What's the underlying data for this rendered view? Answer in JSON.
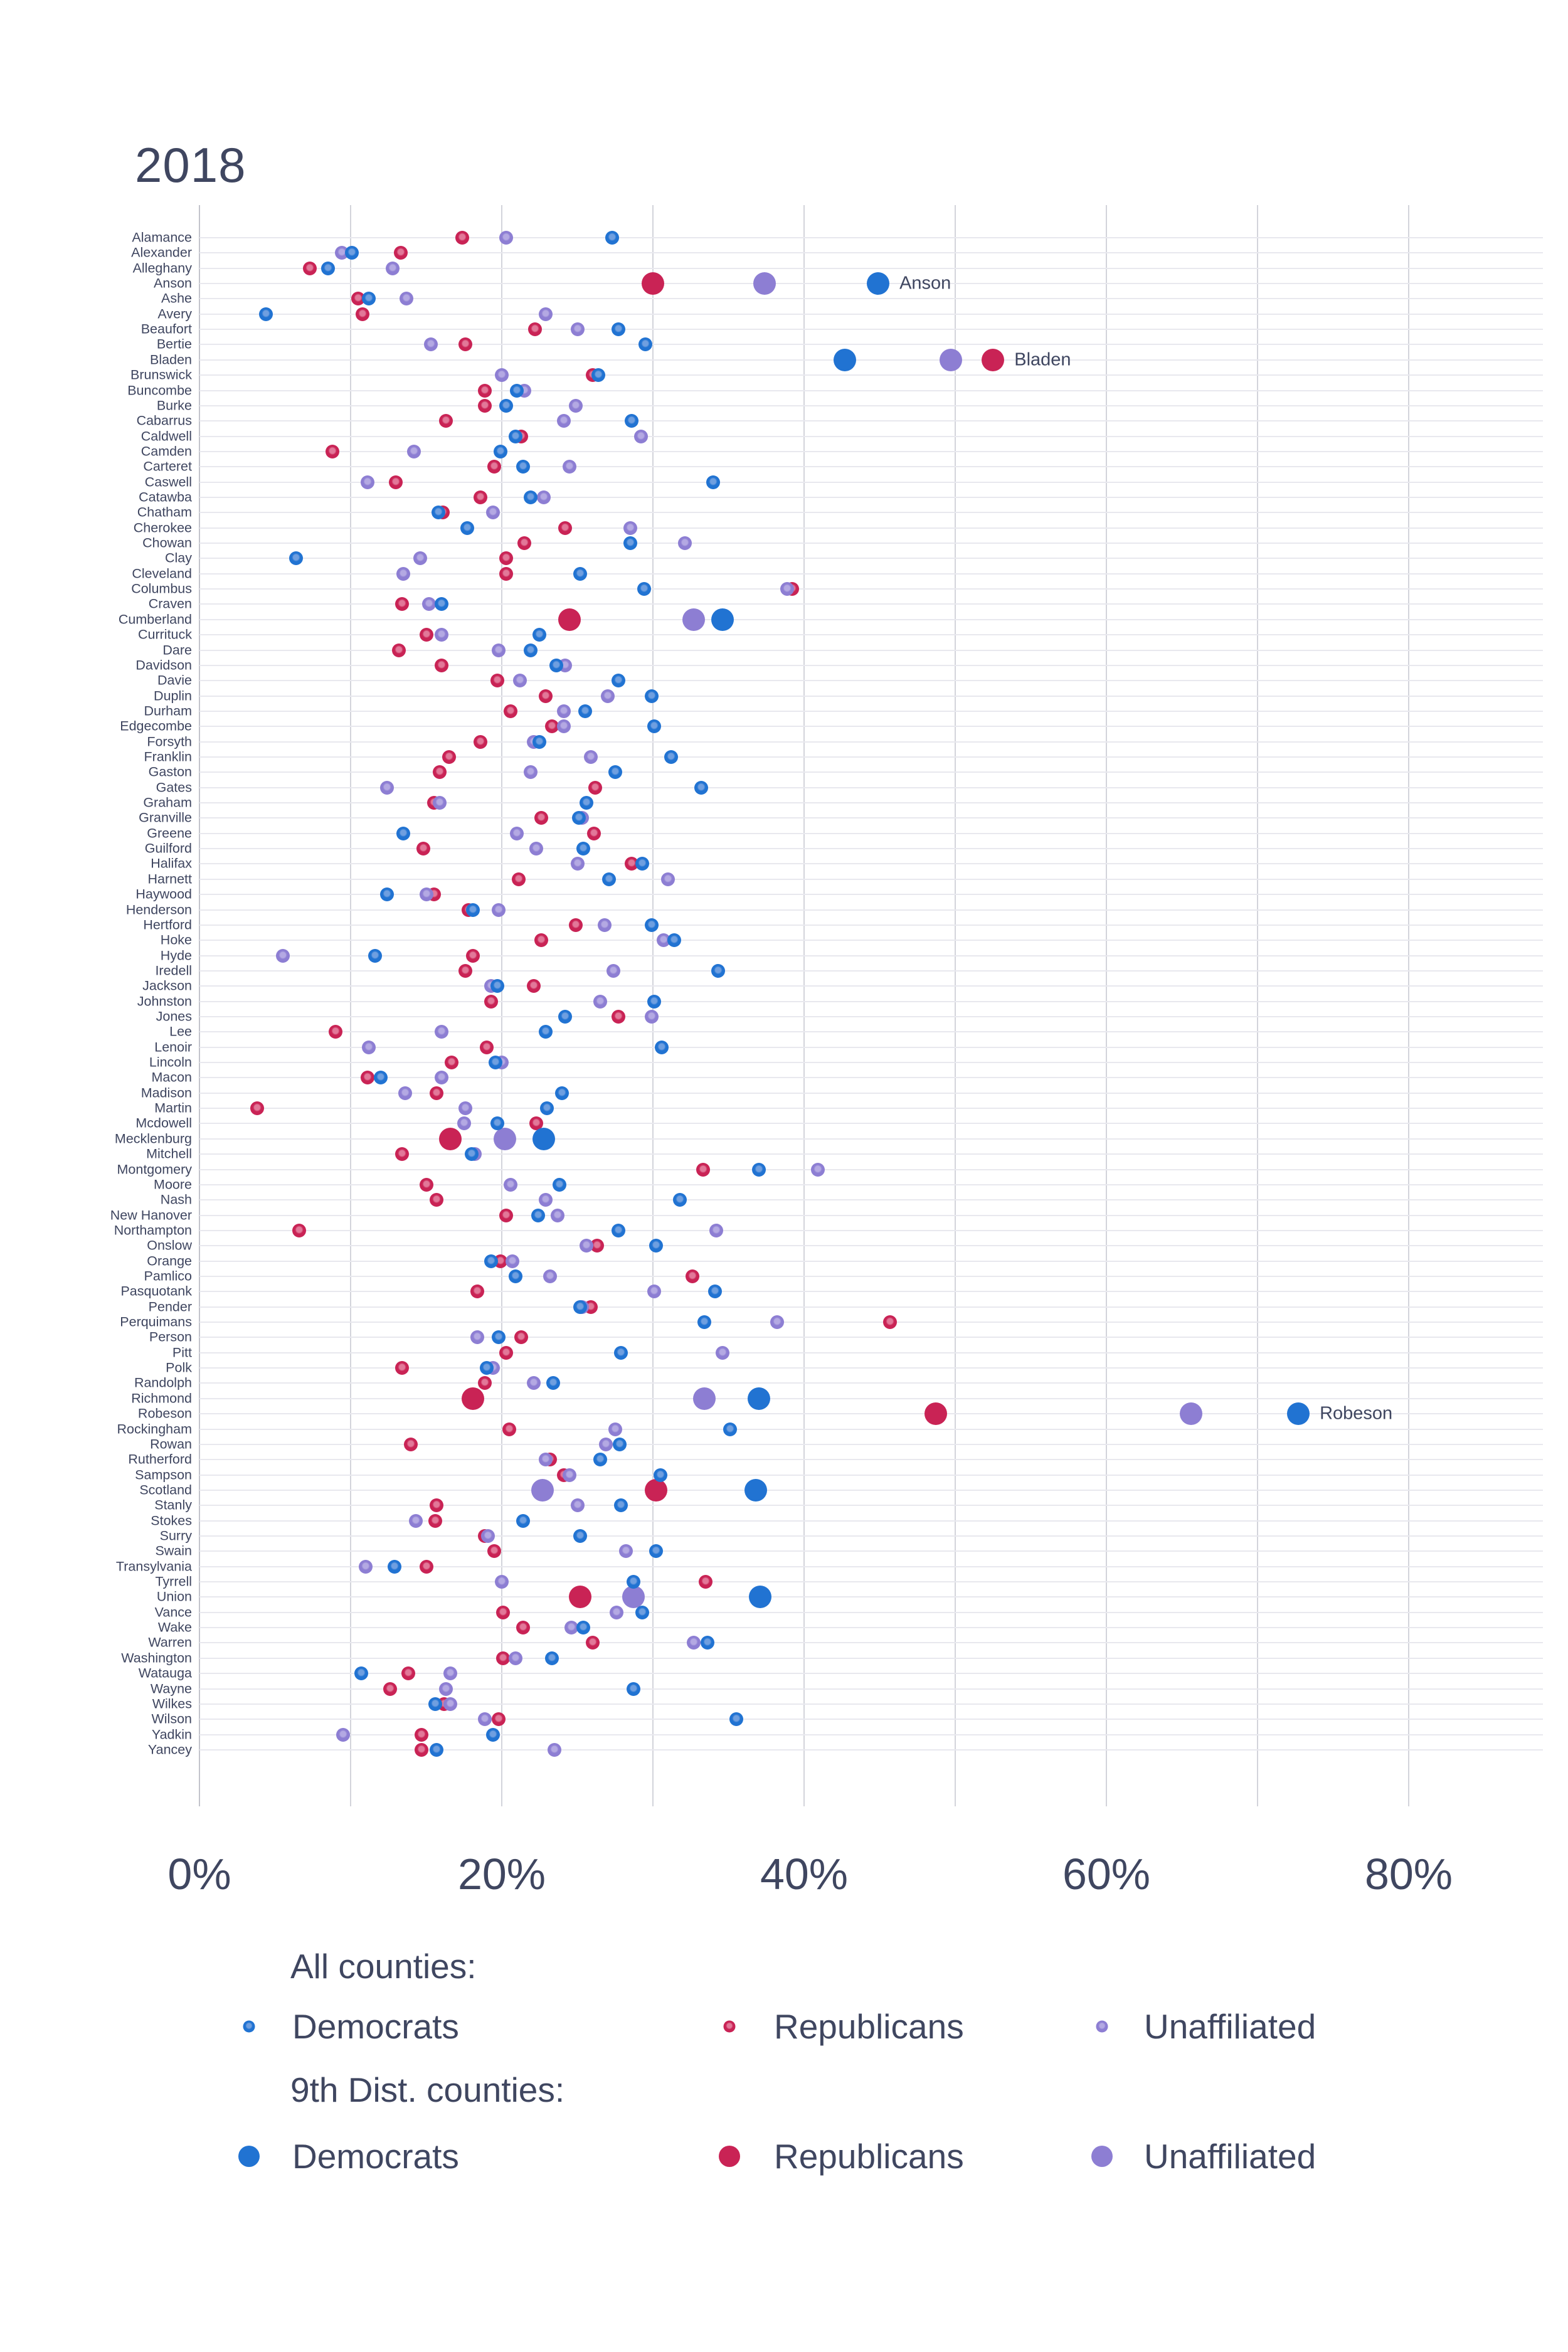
{
  "chart_data": {
    "type": "scatter",
    "title": "2018",
    "x_axis": {
      "min": 0,
      "max": 80,
      "unit": "percent",
      "ticks": [
        0,
        20,
        40,
        60,
        80
      ],
      "tick_labels": [
        "0%",
        "20%",
        "40%",
        "60%",
        "80%"
      ],
      "gridline_ticks": [
        0,
        10,
        20,
        30,
        40,
        50,
        60,
        70,
        80
      ]
    },
    "series": [
      {
        "key": "r",
        "label": "Republicans",
        "color": "#c92355",
        "light": "#e27899"
      },
      {
        "key": "u",
        "label": "Unaffiliated",
        "color": "#8d7ed3",
        "light": "#b4a9e3"
      },
      {
        "key": "d",
        "label": "Democrats",
        "color": "#2173d2",
        "light": "#6f9fe0"
      }
    ],
    "counties": [
      {
        "n": "Alamance",
        "d": 27.3,
        "r": 17.4,
        "u": 20.3
      },
      {
        "n": "Alexander",
        "d": 10.1,
        "r": 13.3,
        "u": 9.4
      },
      {
        "n": "Alleghany",
        "d": 8.5,
        "r": 7.3,
        "u": 12.8
      },
      {
        "n": "Anson",
        "d": 44.9,
        "r": 30.0,
        "u": 37.4,
        "d9": true
      },
      {
        "n": "Ashe",
        "d": 11.2,
        "r": 10.5,
        "u": 13.7
      },
      {
        "n": "Avery",
        "d": 4.4,
        "r": 10.8,
        "u": 22.9
      },
      {
        "n": "Beaufort",
        "d": 27.7,
        "r": 22.2,
        "u": 25.0
      },
      {
        "n": "Bertie",
        "d": 29.5,
        "r": 17.6,
        "u": 15.3
      },
      {
        "n": "Bladen",
        "d": 42.7,
        "r": 52.5,
        "u": 49.7,
        "d9": true
      },
      {
        "n": "Brunswick",
        "d": 26.4,
        "r": 26.0,
        "u": 20.0
      },
      {
        "n": "Buncombe",
        "d": 21.0,
        "r": 18.9,
        "u": 21.5
      },
      {
        "n": "Burke",
        "d": 20.3,
        "r": 18.9,
        "u": 24.9
      },
      {
        "n": "Cabarrus",
        "d": 28.6,
        "r": 16.3,
        "u": 24.1
      },
      {
        "n": "Caldwell",
        "d": 20.9,
        "r": 21.3,
        "u": 29.2
      },
      {
        "n": "Camden",
        "d": 19.9,
        "r": 8.8,
        "u": 14.2
      },
      {
        "n": "Carteret",
        "d": 21.4,
        "r": 19.5,
        "u": 24.5
      },
      {
        "n": "Caswell",
        "d": 34.0,
        "r": 13.0,
        "u": 11.1
      },
      {
        "n": "Catawba",
        "d": 21.9,
        "r": 18.6,
        "u": 22.8
      },
      {
        "n": "Chatham",
        "d": 15.8,
        "r": 16.1,
        "u": 19.4
      },
      {
        "n": "Cherokee",
        "d": 17.7,
        "r": 24.2,
        "u": 28.5
      },
      {
        "n": "Chowan",
        "d": 28.5,
        "r": 21.5,
        "u": 32.1
      },
      {
        "n": "Clay",
        "d": 6.4,
        "r": 20.3,
        "u": 14.6
      },
      {
        "n": "Cleveland",
        "d": 25.2,
        "r": 20.3,
        "u": 13.5
      },
      {
        "n": "Columbus",
        "d": 29.4,
        "r": 39.2,
        "u": 38.9
      },
      {
        "n": "Craven",
        "d": 16.0,
        "r": 13.4,
        "u": 15.2
      },
      {
        "n": "Cumberland",
        "d": 34.6,
        "r": 24.5,
        "u": 32.7,
        "d9": true
      },
      {
        "n": "Currituck",
        "d": 22.5,
        "r": 15.0,
        "u": 16.0
      },
      {
        "n": "Dare",
        "d": 21.9,
        "r": 13.2,
        "u": 19.8
      },
      {
        "n": "Davidson",
        "d": 23.6,
        "r": 16.0,
        "u": 24.2
      },
      {
        "n": "Davie",
        "d": 27.7,
        "r": 19.7,
        "u": 21.2
      },
      {
        "n": "Duplin",
        "d": 29.9,
        "r": 22.9,
        "u": 27.0
      },
      {
        "n": "Durham",
        "d": 25.5,
        "r": 20.6,
        "u": 24.1
      },
      {
        "n": "Edgecombe",
        "d": 30.1,
        "r": 23.3,
        "u": 24.1
      },
      {
        "n": "Forsyth",
        "d": 22.5,
        "r": 18.6,
        "u": 22.1
      },
      {
        "n": "Franklin",
        "d": 31.2,
        "r": 16.5,
        "u": 25.9
      },
      {
        "n": "Gaston",
        "d": 27.5,
        "r": 15.9,
        "u": 21.9
      },
      {
        "n": "Gates",
        "d": 33.2,
        "r": 26.2,
        "u": 12.4
      },
      {
        "n": "Graham",
        "d": 25.6,
        "r": 15.5,
        "u": 15.9
      },
      {
        "n": "Granville",
        "d": 25.1,
        "r": 22.6,
        "u": 25.3
      },
      {
        "n": "Greene",
        "d": 13.5,
        "r": 26.1,
        "u": 21.0
      },
      {
        "n": "Guilford",
        "d": 25.4,
        "r": 14.8,
        "u": 22.3
      },
      {
        "n": "Halifax",
        "d": 29.3,
        "r": 28.6,
        "u": 25.0
      },
      {
        "n": "Harnett",
        "d": 27.1,
        "r": 21.1,
        "u": 31.0
      },
      {
        "n": "Haywood",
        "d": 12.4,
        "r": 15.5,
        "u": 15.0
      },
      {
        "n": "Henderson",
        "d": 18.1,
        "r": 17.8,
        "u": 19.8
      },
      {
        "n": "Hertford",
        "d": 29.9,
        "r": 24.9,
        "u": 26.8
      },
      {
        "n": "Hoke",
        "d": 31.4,
        "r": 22.6,
        "u": 30.7
      },
      {
        "n": "Hyde",
        "d": 11.6,
        "r": 18.1,
        "u": 5.5
      },
      {
        "n": "Iredell",
        "d": 34.3,
        "r": 17.6,
        "u": 27.4
      },
      {
        "n": "Jackson",
        "d": 19.7,
        "r": 22.1,
        "u": 19.3
      },
      {
        "n": "Johnston",
        "d": 30.1,
        "r": 19.3,
        "u": 26.5
      },
      {
        "n": "Jones",
        "d": 24.2,
        "r": 27.7,
        "u": 29.9
      },
      {
        "n": "Lee",
        "d": 22.9,
        "r": 9.0,
        "u": 16.0
      },
      {
        "n": "Lenoir",
        "d": 30.6,
        "r": 19.0,
        "u": 11.2
      },
      {
        "n": "Lincoln",
        "d": 19.6,
        "r": 16.7,
        "u": 20.0
      },
      {
        "n": "Macon",
        "d": 12.0,
        "r": 11.1,
        "u": 16.0
      },
      {
        "n": "Madison",
        "d": 24.0,
        "r": 15.7,
        "u": 13.6
      },
      {
        "n": "Martin",
        "d": 23.0,
        "r": 3.8,
        "u": 17.6
      },
      {
        "n": "Mcdowell",
        "d": 19.7,
        "r": 22.3,
        "u": 17.5
      },
      {
        "n": "Mecklenburg",
        "d": 22.8,
        "r": 16.6,
        "u": 20.2,
        "d9": true
      },
      {
        "n": "Mitchell",
        "d": 18.0,
        "r": 13.4,
        "u": 18.2
      },
      {
        "n": "Montgomery",
        "d": 37.0,
        "r": 33.3,
        "u": 40.9
      },
      {
        "n": "Moore",
        "d": 23.8,
        "r": 15.0,
        "u": 20.6
      },
      {
        "n": "Nash",
        "d": 31.8,
        "r": 15.7,
        "u": 22.9
      },
      {
        "n": "New Hanover",
        "d": 22.4,
        "r": 20.3,
        "u": 23.7
      },
      {
        "n": "Northampton",
        "d": 27.7,
        "r": 6.6,
        "u": 34.2
      },
      {
        "n": "Onslow",
        "d": 30.2,
        "r": 26.3,
        "u": 25.6
      },
      {
        "n": "Orange",
        "d": 19.3,
        "r": 19.9,
        "u": 20.7
      },
      {
        "n": "Pamlico",
        "d": 20.9,
        "r": 32.6,
        "u": 23.2
      },
      {
        "n": "Pasquotank",
        "d": 34.1,
        "r": 18.4,
        "u": 30.1
      },
      {
        "n": "Pender",
        "d": 25.2,
        "r": 25.9,
        "u": 25.3
      },
      {
        "n": "Perquimans",
        "d": 33.4,
        "r": 45.7,
        "u": 38.2
      },
      {
        "n": "Person",
        "d": 19.8,
        "r": 21.3,
        "u": 18.4
      },
      {
        "n": "Pitt",
        "d": 27.9,
        "r": 20.3,
        "u": 34.6
      },
      {
        "n": "Polk",
        "d": 19.0,
        "r": 13.4,
        "u": 19.4
      },
      {
        "n": "Randolph",
        "d": 23.4,
        "r": 18.9,
        "u": 22.1
      },
      {
        "n": "Richmond",
        "d": 37.0,
        "r": 18.1,
        "u": 33.4,
        "d9": true
      },
      {
        "n": "Robeson",
        "d": 72.7,
        "r": 48.7,
        "u": 65.6,
        "d9": true
      },
      {
        "n": "Rockingham",
        "d": 35.1,
        "r": 20.5,
        "u": 27.5
      },
      {
        "n": "Rowan",
        "d": 27.8,
        "r": 14.0,
        "u": 26.9
      },
      {
        "n": "Rutherford",
        "d": 26.5,
        "r": 23.2,
        "u": 22.9
      },
      {
        "n": "Sampson",
        "d": 30.5,
        "r": 24.1,
        "u": 24.5
      },
      {
        "n": "Scotland",
        "d": 36.8,
        "r": 30.2,
        "u": 22.7,
        "d9": true
      },
      {
        "n": "Stanly",
        "d": 27.9,
        "r": 15.7,
        "u": 25.0
      },
      {
        "n": "Stokes",
        "d": 21.4,
        "r": 15.6,
        "u": 14.3
      },
      {
        "n": "Surry",
        "d": 25.2,
        "r": 18.9,
        "u": 19.1
      },
      {
        "n": "Swain",
        "d": 30.2,
        "r": 19.5,
        "u": 28.2
      },
      {
        "n": "Transylvania",
        "d": 12.9,
        "r": 15.0,
        "u": 11.0
      },
      {
        "n": "Tyrrell",
        "d": 28.7,
        "r": 33.5,
        "u": 20.0
      },
      {
        "n": "Union",
        "d": 37.1,
        "r": 25.2,
        "u": 28.7,
        "d9": true
      },
      {
        "n": "Vance",
        "d": 29.3,
        "r": 20.1,
        "u": 27.6
      },
      {
        "n": "Wake",
        "d": 25.4,
        "r": 21.4,
        "u": 24.6
      },
      {
        "n": "Warren",
        "d": 33.6,
        "r": 26.0,
        "u": 32.7
      },
      {
        "n": "Washington",
        "d": 23.3,
        "r": 20.1,
        "u": 20.9
      },
      {
        "n": "Watauga",
        "d": 10.7,
        "r": 13.8,
        "u": 16.6
      },
      {
        "n": "Wayne",
        "d": 28.7,
        "r": 12.6,
        "u": 16.3
      },
      {
        "n": "Wilkes",
        "d": 15.6,
        "r": 16.2,
        "u": 16.6
      },
      {
        "n": "Wilson",
        "d": 35.5,
        "r": 19.8,
        "u": 18.9
      },
      {
        "n": "Yadkin",
        "d": 19.4,
        "r": 14.7,
        "u": 9.5
      },
      {
        "n": "Yancey",
        "d": 15.7,
        "r": 14.7,
        "u": 23.5
      }
    ],
    "annotations": [
      {
        "label": "Anson",
        "county": "Anson",
        "series": "d"
      },
      {
        "label": "Bladen",
        "county": "Bladen",
        "series": "r"
      },
      {
        "label": "Robeson",
        "county": "Robeson",
        "series": "d"
      }
    ],
    "legend_position": "bottom"
  },
  "legend": {
    "all_header": "All counties:",
    "dist_header": "9th Dist. counties:",
    "items": [
      {
        "key": "d",
        "label": "Democrats"
      },
      {
        "key": "r",
        "label": "Republicans"
      },
      {
        "key": "u",
        "label": "Unaffiliated"
      }
    ]
  },
  "colors": {
    "text": "#3f4660",
    "democrats": "#2173d2",
    "republicans": "#c92355",
    "unaffiliated": "#8d7ed3",
    "gridline_vertical": "#d3d4db",
    "gridline_horizontal": "#e8e8ee"
  }
}
